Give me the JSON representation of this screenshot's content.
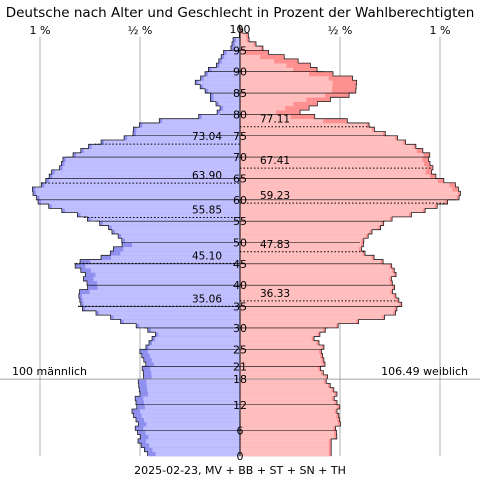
{
  "chart_data": {
    "type": "population-pyramid",
    "title": "Deutsche nach Alter und Geschlecht in Prozent der Wahlberechtigten",
    "footer": "2025-02-23, MV + BB + ST + SN + TH",
    "x_ticks": [
      {
        "label": "1 %",
        "value": -1.0
      },
      {
        "label": "½ %",
        "value": -0.5
      },
      {
        "label": "½ %",
        "value": 0.5
      },
      {
        "label": "1 %",
        "value": 1.0
      }
    ],
    "y_labels": [
      0,
      6,
      12,
      18,
      21,
      25,
      30,
      35,
      40,
      45,
      50,
      55,
      60,
      65,
      70,
      75,
      80,
      85,
      90,
      95,
      100
    ],
    "age_range": [
      0,
      100
    ],
    "eligible_age": 18,
    "totals": {
      "male": "100 männlich",
      "female": "106.49 weiblich"
    },
    "median_lines": [
      {
        "side": "male",
        "age": 73.04,
        "label": "73.04"
      },
      {
        "side": "male",
        "age": 63.9,
        "label": "63.90"
      },
      {
        "side": "male",
        "age": 55.85,
        "label": "55.85"
      },
      {
        "side": "male",
        "age": 45.1,
        "label": "45.10"
      },
      {
        "side": "male",
        "age": 35.06,
        "label": "35.06"
      },
      {
        "side": "female",
        "age": 77.11,
        "label": "77.11"
      },
      {
        "side": "female",
        "age": 67.41,
        "label": "67.41"
      },
      {
        "side": "female",
        "age": 59.23,
        "label": "59.23"
      },
      {
        "side": "female",
        "age": 47.83,
        "label": "47.83"
      },
      {
        "side": "female",
        "age": 36.33,
        "label": "36.33"
      }
    ],
    "colors": {
      "male": "#bfbfff",
      "male_dark": "#8f8ff0",
      "female": "#ffbfbf",
      "female_dark": "#ff9090",
      "outline": "#202020",
      "grid": "#b0b0b0"
    },
    "series": [
      {
        "name": "männlich",
        "side": "male",
        "x": [
          0,
          5,
          10,
          15,
          17,
          20,
          25,
          28,
          30,
          33,
          35,
          38,
          40,
          43,
          45,
          47,
          50,
          52,
          55,
          58,
          60,
          62,
          63,
          65,
          68,
          70,
          73,
          75,
          78,
          80,
          82,
          85,
          88,
          90,
          93,
          95,
          98,
          100
        ],
        "values": [
          0.47,
          0.51,
          0.53,
          0.51,
          0.5,
          0.48,
          0.49,
          0.42,
          0.48,
          0.69,
          0.81,
          0.8,
          0.76,
          0.79,
          0.83,
          0.66,
          0.59,
          0.61,
          0.72,
          0.93,
          1.02,
          1.04,
          1.02,
          0.96,
          0.9,
          0.87,
          0.73,
          0.54,
          0.51,
          0.1,
          0.11,
          0.17,
          0.22,
          0.16,
          0.1,
          0.06,
          0.02,
          0.0
        ]
      }
    ],
    "series_female": [
      {
        "name": "weiblich",
        "side": "female",
        "x": [
          0,
          5,
          10,
          15,
          17,
          20,
          25,
          28,
          30,
          33,
          35,
          38,
          40,
          43,
          45,
          47,
          50,
          52,
          55,
          58,
          60,
          62,
          63,
          65,
          68,
          70,
          73,
          75,
          78,
          80,
          82,
          85,
          88,
          90,
          93,
          95,
          98,
          100
        ],
        "values": [
          0.44,
          0.48,
          0.5,
          0.47,
          0.45,
          0.41,
          0.42,
          0.37,
          0.44,
          0.77,
          0.8,
          0.78,
          0.76,
          0.77,
          0.76,
          0.63,
          0.6,
          0.66,
          0.73,
          0.96,
          1.08,
          1.11,
          1.09,
          0.99,
          0.95,
          0.95,
          0.87,
          0.75,
          0.61,
          0.3,
          0.35,
          0.57,
          0.6,
          0.42,
          0.26,
          0.12,
          0.04,
          0.0
        ]
      }
    ]
  }
}
